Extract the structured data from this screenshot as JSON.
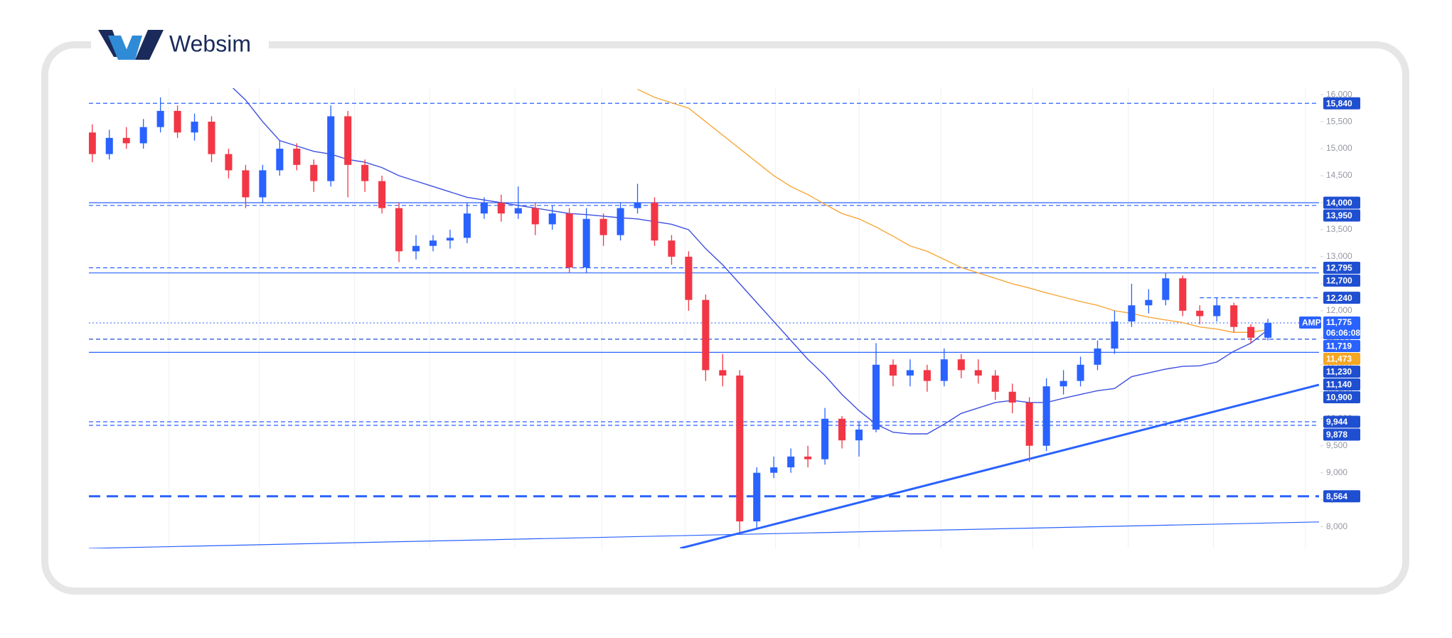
{
  "brand": "Websim",
  "chart_data": {
    "type": "candlestick",
    "xlim": [
      -0.2,
      72
    ],
    "ylim": [
      7600,
      16120
    ],
    "yticks": [
      {
        "value": 8000,
        "label": "8,000"
      },
      {
        "value": 8500,
        "label": "8,500"
      },
      {
        "value": 9000,
        "label": "9,000"
      },
      {
        "value": 9500,
        "label": "9,500"
      },
      {
        "value": 10000,
        "label": "10,000"
      },
      {
        "value": 10500,
        "label": "10,500"
      },
      {
        "value": 11000,
        "label": "11,000"
      },
      {
        "value": 11500,
        "label": "11,500"
      },
      {
        "value": 12000,
        "label": "12,000"
      },
      {
        "value": 12500,
        "label": "12,500"
      },
      {
        "value": 13000,
        "label": "13,000"
      },
      {
        "value": 13500,
        "label": "13,500"
      },
      {
        "value": 14000,
        "label": "14,000"
      },
      {
        "value": 14500,
        "label": "14,500"
      },
      {
        "value": 15000,
        "label": "15,000"
      },
      {
        "value": 15500,
        "label": "15,500"
      },
      {
        "value": 16000,
        "label": "16,000"
      }
    ],
    "xgrid": [
      4.5,
      9.8,
      15.4,
      19.8,
      24.8,
      29.9,
      34.8,
      40.1,
      45,
      49.8,
      55.2,
      60.8,
      65.8,
      71.2
    ],
    "up_color": "#2962ff",
    "down_color": "#f23645",
    "open": [
      15300,
      14900,
      15200,
      15100,
      15400,
      15700,
      15300,
      15500,
      14900,
      14600,
      14100,
      14600,
      15000,
      14700,
      14400,
      15600,
      14700,
      14400,
      13900,
      13100,
      13200,
      13300,
      13350,
      13800,
      14000,
      13800,
      13900,
      13600,
      13800,
      12800,
      13700,
      13400,
      13900,
      14000,
      13300,
      13000,
      12200,
      10900,
      10800,
      8100,
      9000,
      9100,
      9300,
      9250,
      10000,
      9600,
      9800,
      11000,
      10800,
      10900,
      10700,
      11100,
      10900,
      10800,
      10500,
      10300,
      9500,
      10600,
      10700,
      11000,
      11300,
      11800,
      12100,
      12200,
      12600,
      12000,
      11900,
      12100,
      11700,
      11500
    ],
    "high": [
      15450,
      15350,
      15400,
      15550,
      15950,
      15800,
      15650,
      15600,
      15000,
      14700,
      14700,
      15150,
      15100,
      14800,
      15800,
      15700,
      14800,
      14500,
      14000,
      13400,
      13400,
      13500,
      14000,
      14100,
      14150,
      14300,
      14000,
      13950,
      13900,
      13900,
      13800,
      14000,
      14350,
      14100,
      13400,
      13100,
      12300,
      11200,
      10900,
      9100,
      9300,
      9450,
      9500,
      10200,
      10050,
      9950,
      11400,
      11100,
      11100,
      11000,
      11300,
      11200,
      11100,
      10900,
      10650,
      10400,
      10750,
      10900,
      11150,
      11450,
      12000,
      12500,
      12400,
      12700,
      12650,
      12100,
      12250,
      12150,
      11750,
      11850
    ],
    "low": [
      14750,
      14800,
      15000,
      15000,
      15300,
      15200,
      15150,
      14750,
      14450,
      13900,
      14000,
      14500,
      14600,
      14200,
      14300,
      14100,
      14200,
      13800,
      12900,
      12950,
      13100,
      13150,
      13250,
      13700,
      13650,
      13700,
      13400,
      13500,
      12700,
      12700,
      13200,
      13300,
      13800,
      13200,
      12850,
      12000,
      10700,
      10600,
      7900,
      7950,
      8900,
      9000,
      9100,
      9150,
      9450,
      9300,
      9750,
      10600,
      10600,
      10500,
      10600,
      10750,
      10650,
      10350,
      10100,
      9200,
      9400,
      10450,
      10600,
      10900,
      11200,
      11700,
      11950,
      12100,
      11900,
      11750,
      11800,
      11600,
      11400,
      11450
    ],
    "close": [
      14900,
      15200,
      15100,
      15400,
      15700,
      15300,
      15500,
      14900,
      14600,
      14100,
      14600,
      15000,
      14700,
      14400,
      15600,
      14700,
      14400,
      13900,
      13100,
      13200,
      13300,
      13350,
      13800,
      14000,
      13800,
      13900,
      13600,
      13800,
      12800,
      13700,
      13400,
      13900,
      14000,
      13300,
      13000,
      12200,
      10900,
      10800,
      8100,
      9000,
      9100,
      9300,
      9250,
      10000,
      9600,
      9800,
      11000,
      10800,
      10900,
      10700,
      11100,
      10900,
      10800,
      10500,
      10300,
      9500,
      10600,
      10700,
      11000,
      11300,
      11800,
      12100,
      12200,
      12600,
      12000,
      11900,
      12100,
      11700,
      11500,
      11775
    ],
    "series": [
      {
        "color": "#3d4fe0",
        "values": [
          null,
          null,
          null,
          null,
          null,
          null,
          null,
          null,
          16200,
          15900,
          15500,
          15150,
          15050,
          14950,
          14900,
          14800,
          14750,
          14650,
          14500,
          14400,
          14300,
          14200,
          14100,
          14050,
          14000,
          13950,
          13900,
          13850,
          13800,
          13780,
          13750,
          13720,
          13700,
          13650,
          13600,
          13500,
          13150,
          12850,
          12500,
          12150,
          11800,
          11450,
          11100,
          10800,
          10450,
          10150,
          9900,
          9750,
          9720,
          9720,
          9900,
          10100,
          10200,
          10300,
          10340,
          10300,
          10300,
          10380,
          10450,
          10520,
          10560,
          10780,
          10850,
          10920,
          10970,
          10980,
          11050,
          11250,
          11400,
          11650
        ]
      },
      {
        "color": "#f7a83b",
        "values": [
          null,
          null,
          null,
          null,
          null,
          null,
          null,
          null,
          null,
          null,
          null,
          null,
          null,
          null,
          null,
          null,
          null,
          null,
          null,
          null,
          null,
          null,
          null,
          null,
          null,
          null,
          null,
          null,
          null,
          null,
          null,
          null,
          16100,
          15950,
          15850,
          15750,
          15500,
          15250,
          15000,
          14750,
          14500,
          14300,
          14150,
          13970,
          13800,
          13700,
          13550,
          13380,
          13200,
          13100,
          12950,
          12800,
          12700,
          12600,
          12500,
          12420,
          12330,
          12250,
          12170,
          12100,
          12000,
          11950,
          11880,
          11830,
          11780,
          11700,
          11660,
          11600,
          11600,
          11650
        ]
      }
    ],
    "trendlines": [
      {
        "color": "#2962ff",
        "width": 1.2,
        "points": [
          [
            -0.2,
            7600
          ],
          [
            72,
            8090
          ]
        ]
      },
      {
        "color": "#2962ff",
        "width": 3,
        "points": [
          [
            34.5,
            7600
          ],
          [
            72,
            10630
          ]
        ]
      }
    ],
    "levels": [
      {
        "value": 15840,
        "label": "15,840",
        "style": "dashed",
        "color": "#1f4fd1"
      },
      {
        "value": 14000,
        "label": "14,000",
        "style": "solid",
        "color": "#1f4fd1"
      },
      {
        "value": 13950,
        "label": "13,950",
        "style": "dashed",
        "color": "#1f4fd1"
      },
      {
        "value": 12795,
        "label": "12,795",
        "style": "dashed",
        "color": "#1f4fd1"
      },
      {
        "value": 12700,
        "label": "12,700",
        "style": "solid",
        "color": "#1f4fd1"
      },
      {
        "value": 12240,
        "label": "12,240",
        "style": "dashed",
        "color": "#1f4fd1",
        "from": 65
      },
      {
        "value": 11719,
        "label": "11,719",
        "style": "none",
        "color": "#2962ff"
      },
      {
        "value": 11473,
        "label": "11,473",
        "style": "dashed",
        "color": "#f5a623"
      },
      {
        "value": 11230,
        "label": "11,230",
        "style": "solid",
        "color": "#1f4fd1"
      },
      {
        "value": 11140,
        "label": "11,140",
        "style": "none",
        "color": "#1f4fd1"
      },
      {
        "value": 10900,
        "label": "10,900",
        "style": "none",
        "color": "#1f4fd1"
      },
      {
        "value": 9944,
        "label": "9,944",
        "style": "dashed",
        "color": "#1f4fd1"
      },
      {
        "value": 9878,
        "label": "9,878",
        "style": "dashed",
        "color": "#1f4fd1"
      },
      {
        "value": 8564,
        "label": "8,564",
        "style": "thick-dashed",
        "color": "#1f4fd1"
      }
    ],
    "last": {
      "symbol": "AMP",
      "value": 11775,
      "label": "11,775",
      "countdown": "06:06:08",
      "color": "#2962ff"
    }
  }
}
